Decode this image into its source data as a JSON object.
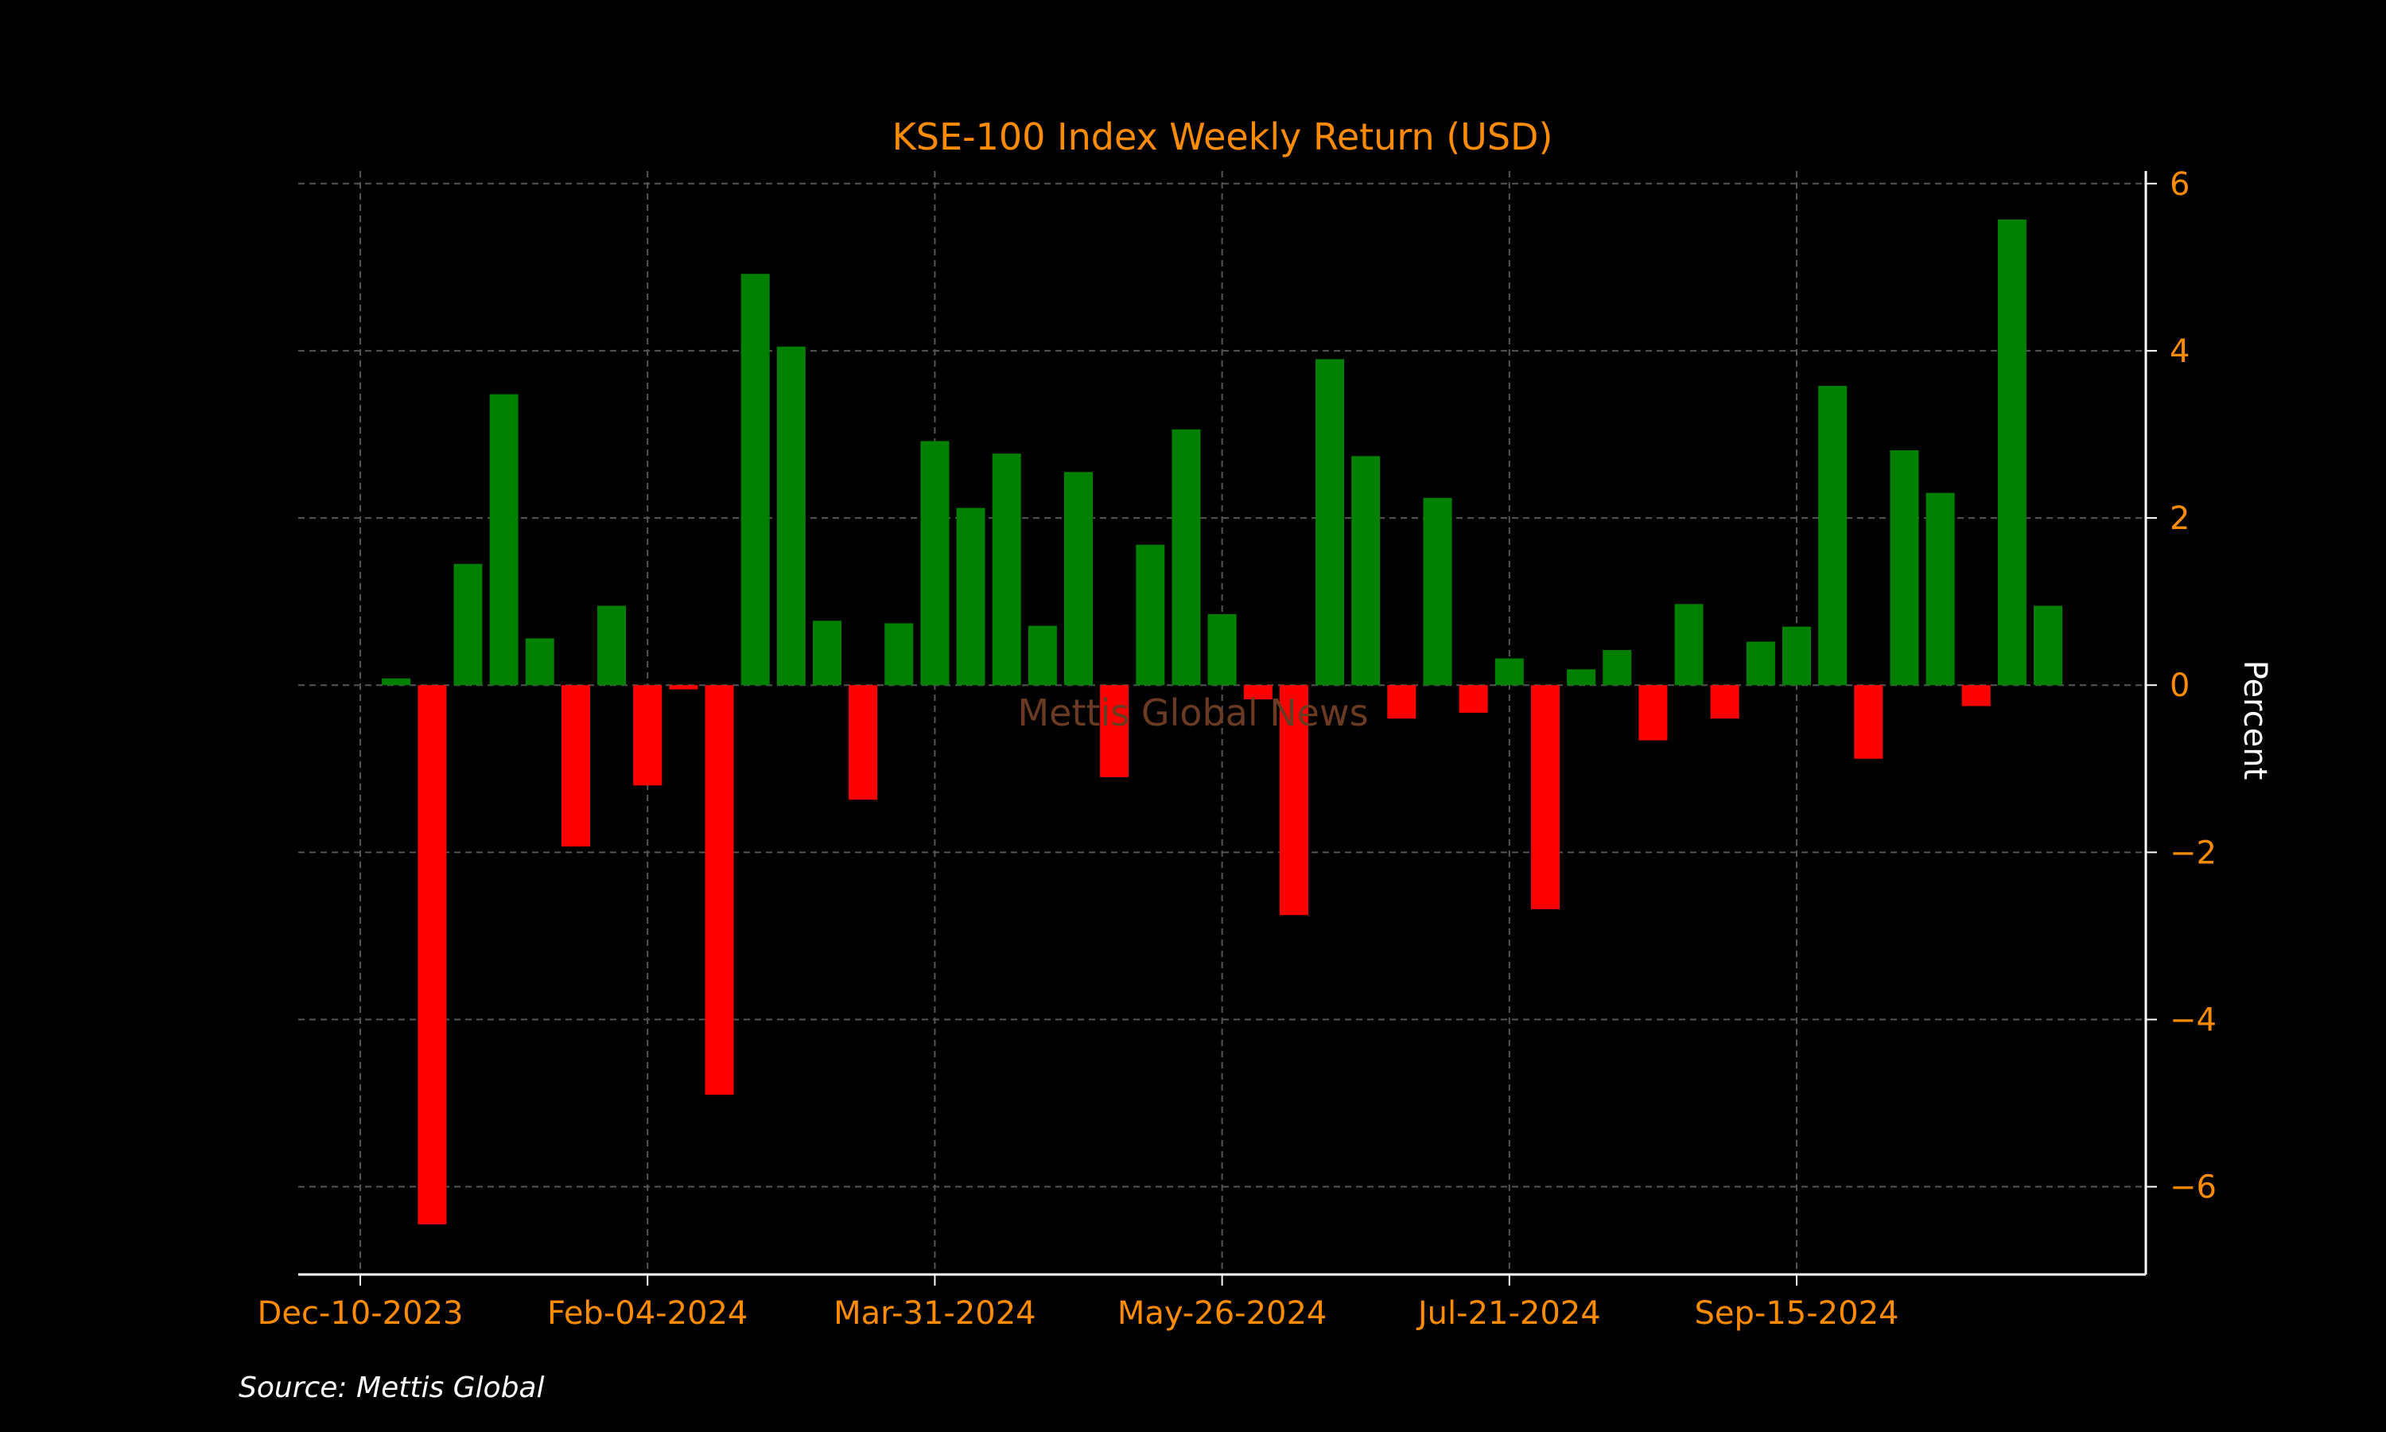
{
  "chart_data": {
    "type": "bar",
    "title": "KSE-100 Index Weekly Return (USD)",
    "xlabel": "",
    "ylabel": "Percent",
    "ylim": [
      -7.05,
      6.15
    ],
    "yticks": [
      6,
      4,
      2,
      0,
      -2,
      -4,
      -6
    ],
    "ytick_labels": [
      "6",
      "4",
      "2",
      "0",
      "−2",
      "−4",
      "−6"
    ],
    "xtick_labels": [
      {
        "label": "Dec-10-2023",
        "index": 0
      },
      {
        "label": "Feb-04-2024",
        "index": 8
      },
      {
        "label": "Mar-31-2024",
        "index": 16
      },
      {
        "label": "May-26-2024",
        "index": 24
      },
      {
        "label": "Jul-21-2024",
        "index": 32
      },
      {
        "label": "Sep-15-2024",
        "index": 40
      }
    ],
    "grid": true,
    "legend": "none",
    "watermark": "Mettis Global News",
    "source": "Source: Mettis Global",
    "y_axis_position": "right",
    "colors": {
      "background": "#000000",
      "positive": "#008000",
      "negative": "#ff0000",
      "title": "#ff8c00",
      "tick_labels": "#ff8c00",
      "axis_label": "#ffffff",
      "axis_line": "#ffffff",
      "grid": "#555555",
      "watermark": "#6b3a22",
      "source": "#ffffff"
    },
    "values": [
      0.08,
      -6.45,
      1.45,
      3.48,
      0.56,
      -1.93,
      0.95,
      -1.2,
      -0.05,
      -4.9,
      4.92,
      4.05,
      0.77,
      -1.37,
      0.74,
      2.92,
      2.12,
      2.77,
      0.71,
      2.55,
      -1.1,
      1.68,
      3.06,
      0.85,
      -0.17,
      -2.75,
      3.9,
      2.74,
      -0.4,
      2.24,
      -0.33,
      0.32,
      -2.68,
      0.19,
      0.42,
      -0.66,
      0.97,
      -0.4,
      0.52,
      0.7,
      3.58,
      -0.88,
      2.81,
      2.3,
      -0.25,
      5.57,
      0.95
    ]
  }
}
